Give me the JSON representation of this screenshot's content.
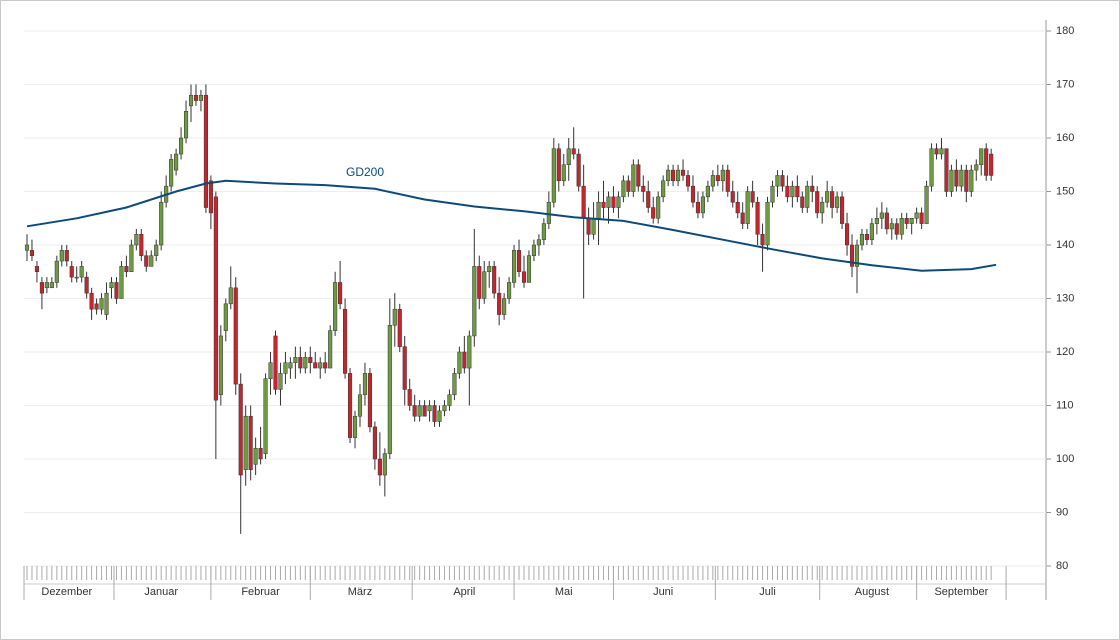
{
  "chart_data": {
    "type": "candlestick",
    "ylim": [
      80,
      180
    ],
    "yticks": [
      80,
      90,
      100,
      110,
      120,
      130,
      140,
      150,
      160,
      170,
      180
    ],
    "grid": true,
    "up_color": "#6f9a44",
    "down_color": "#c3262d",
    "categories": [
      null,
      null,
      null,
      null,
      null,
      null,
      null,
      null,
      "Dezember",
      null,
      null,
      null,
      null,
      null,
      null,
      null,
      null,
      null,
      null,
      null,
      null,
      null,
      null,
      null,
      null,
      null,
      null,
      "Januar",
      null,
      null,
      null,
      null,
      null,
      null,
      null,
      null,
      null,
      null,
      null,
      null,
      null,
      null,
      null,
      null,
      null,
      null,
      null,
      "Februar",
      null,
      null,
      null,
      null,
      null,
      null,
      null,
      null,
      null,
      null,
      null,
      null,
      null,
      null,
      null,
      null,
      null,
      null,
      null,
      "März",
      null,
      null,
      null,
      null,
      null,
      null,
      null,
      null,
      null,
      null,
      null,
      null,
      null,
      null,
      null,
      null,
      null,
      null,
      null,
      null,
      "April",
      null,
      null,
      null,
      null,
      null,
      null,
      null,
      null,
      null,
      null,
      null,
      null,
      null,
      null,
      null,
      null,
      null,
      null,
      null,
      "Mai",
      null,
      null,
      null,
      null,
      null,
      null,
      null,
      null,
      null,
      null,
      null,
      null,
      null,
      null,
      null,
      null,
      null,
      null,
      null,
      "Juni",
      null,
      null,
      null,
      null,
      null,
      null,
      null,
      null,
      null,
      null,
      null,
      null,
      null,
      null,
      null,
      null,
      null,
      null,
      null,
      null,
      "Juli",
      null,
      null,
      null,
      null,
      null,
      null,
      null,
      null,
      null,
      null,
      null,
      null,
      null,
      null,
      null,
      null,
      null,
      null,
      null,
      null,
      "August",
      null,
      null,
      null,
      null,
      null,
      null,
      null,
      null,
      null,
      null,
      null,
      null,
      null,
      null,
      null,
      null,
      null,
      "September",
      null,
      null,
      null,
      null,
      null,
      null
    ],
    "ohlc": [
      [
        139,
        142,
        137,
        140
      ],
      [
        139,
        141,
        137,
        138
      ],
      [
        136,
        137,
        133,
        135
      ],
      [
        133,
        134,
        128,
        131
      ],
      [
        132,
        134,
        131,
        133
      ],
      [
        132,
        134,
        132,
        133
      ],
      [
        133,
        138,
        132,
        137
      ],
      [
        137,
        140,
        136,
        139
      ],
      [
        139,
        140,
        136,
        137
      ],
      [
        136,
        137,
        133,
        134
      ],
      [
        134,
        136,
        133,
        134
      ],
      [
        134,
        137,
        133,
        136
      ],
      [
        134,
        135,
        130,
        131
      ],
      [
        131,
        132,
        126,
        128
      ],
      [
        129,
        130,
        127,
        128
      ],
      [
        128,
        131,
        127,
        130
      ],
      [
        127,
        133,
        126,
        131
      ],
      [
        132,
        134,
        130,
        133
      ],
      [
        133,
        134,
        129,
        130
      ],
      [
        130,
        137,
        130,
        136
      ],
      [
        136,
        138,
        134,
        135
      ],
      [
        135,
        141,
        135,
        140
      ],
      [
        140,
        143,
        139,
        142
      ],
      [
        142,
        143,
        137,
        138
      ],
      [
        138,
        139,
        135,
        136
      ],
      [
        136,
        139,
        136,
        138
      ],
      [
        138,
        141,
        137,
        140
      ],
      [
        140,
        150,
        139,
        148
      ],
      [
        148,
        153,
        147,
        151
      ],
      [
        151,
        157,
        150,
        156
      ],
      [
        154,
        158,
        153,
        157
      ],
      [
        157,
        162,
        156,
        160
      ],
      [
        160,
        167,
        159,
        165
      ],
      [
        166,
        170,
        163,
        168
      ],
      [
        168,
        170,
        166,
        167
      ],
      [
        167,
        169,
        165,
        168
      ],
      [
        168,
        170,
        146,
        147
      ],
      [
        152,
        153,
        143,
        146
      ],
      [
        149,
        150,
        100,
        111
      ],
      [
        112,
        125,
        110,
        123
      ],
      [
        124,
        130,
        122,
        129
      ],
      [
        129,
        136,
        128,
        132
      ],
      [
        132,
        134,
        112,
        114
      ],
      [
        114,
        116,
        86,
        97
      ],
      [
        98,
        110,
        95,
        108
      ],
      [
        108,
        110,
        96,
        98
      ],
      [
        99,
        104,
        97,
        102
      ],
      [
        102,
        106,
        99,
        100
      ],
      [
        101,
        116,
        100,
        115
      ],
      [
        115,
        120,
        112,
        118
      ],
      [
        123,
        124,
        112,
        113
      ],
      [
        113,
        118,
        110,
        116
      ],
      [
        116,
        120,
        114,
        118
      ],
      [
        117,
        119,
        115,
        118
      ],
      [
        118,
        121,
        115,
        119
      ],
      [
        119,
        121,
        116,
        117
      ],
      [
        117,
        120,
        116,
        119
      ],
      [
        119,
        121,
        116,
        118
      ],
      [
        118,
        120,
        117,
        117
      ],
      [
        117,
        119,
        115,
        118
      ],
      [
        118,
        120,
        116,
        117
      ],
      [
        117,
        125,
        117,
        124
      ],
      [
        124,
        135,
        123,
        133
      ],
      [
        133,
        137,
        128,
        129
      ],
      [
        128,
        130,
        115,
        116
      ],
      [
        116,
        117,
        103,
        104
      ],
      [
        104,
        109,
        102,
        108
      ],
      [
        108,
        114,
        106,
        112
      ],
      [
        112,
        118,
        110,
        116
      ],
      [
        116,
        117,
        105,
        106
      ],
      [
        106,
        107,
        98,
        100
      ],
      [
        100,
        105,
        95,
        97
      ],
      [
        97,
        102,
        93,
        101
      ],
      [
        101,
        130,
        100,
        125
      ],
      [
        125,
        131,
        121,
        128
      ],
      [
        128,
        129,
        120,
        121
      ],
      [
        121,
        123,
        110,
        113
      ],
      [
        113,
        115,
        109,
        110
      ],
      [
        110,
        112,
        107,
        108
      ],
      [
        108,
        111,
        107,
        110
      ],
      [
        110,
        111,
        108,
        108
      ],
      [
        109,
        111,
        107,
        110
      ],
      [
        110,
        111,
        106,
        107
      ],
      [
        107,
        110,
        106,
        109
      ],
      [
        109,
        111,
        108,
        110
      ],
      [
        110,
        113,
        109,
        112
      ],
      [
        112,
        117,
        111,
        116
      ],
      [
        116,
        121,
        115,
        120
      ],
      [
        120,
        123,
        116,
        117
      ],
      [
        117,
        124,
        110,
        123
      ],
      [
        123,
        143,
        121,
        136
      ],
      [
        136,
        138,
        128,
        130
      ],
      [
        130,
        137,
        129,
        135
      ],
      [
        135,
        137,
        132,
        136
      ],
      [
        136,
        137,
        130,
        131
      ],
      [
        131,
        134,
        125,
        127
      ],
      [
        127,
        131,
        126,
        130
      ],
      [
        130,
        134,
        129,
        133
      ],
      [
        133,
        140,
        132,
        139
      ],
      [
        139,
        141,
        134,
        135
      ],
      [
        135,
        138,
        132,
        133
      ],
      [
        133,
        139,
        133,
        138
      ],
      [
        138,
        141,
        137,
        140
      ],
      [
        140,
        142,
        138,
        141
      ],
      [
        141,
        145,
        140,
        144
      ],
      [
        144,
        150,
        143,
        148
      ],
      [
        148,
        160,
        147,
        158
      ],
      [
        158,
        159,
        150,
        152
      ],
      [
        152,
        157,
        151,
        155
      ],
      [
        155,
        160,
        152,
        158
      ],
      [
        158,
        162,
        156,
        157
      ],
      [
        157,
        158,
        150,
        151
      ],
      [
        151,
        155,
        130,
        145
      ],
      [
        145,
        147,
        140,
        142
      ],
      [
        142,
        148,
        141,
        145
      ],
      [
        145,
        150,
        140,
        148
      ],
      [
        148,
        152,
        145,
        147
      ],
      [
        147,
        150,
        144,
        149
      ],
      [
        149,
        151,
        146,
        147
      ],
      [
        147,
        150,
        145,
        149
      ],
      [
        149,
        153,
        148,
        152
      ],
      [
        152,
        153,
        149,
        150
      ],
      [
        150,
        156,
        149,
        155
      ],
      [
        155,
        156,
        150,
        151
      ],
      [
        151,
        153,
        148,
        150
      ],
      [
        150,
        152,
        146,
        147
      ],
      [
        147,
        149,
        144,
        145
      ],
      [
        145,
        150,
        144,
        149
      ],
      [
        149,
        153,
        148,
        152
      ],
      [
        152,
        155,
        151,
        154
      ],
      [
        154,
        155,
        151,
        152
      ],
      [
        152,
        155,
        151,
        154
      ],
      [
        154,
        156,
        152,
        153
      ],
      [
        153,
        154,
        150,
        151
      ],
      [
        151,
        153,
        147,
        148
      ],
      [
        148,
        150,
        145,
        146
      ],
      [
        146,
        150,
        145,
        149
      ],
      [
        149,
        152,
        148,
        151
      ],
      [
        151,
        154,
        150,
        153
      ],
      [
        153,
        155,
        151,
        152
      ],
      [
        152,
        155,
        150,
        154
      ],
      [
        154,
        155,
        149,
        150
      ],
      [
        150,
        152,
        147,
        148
      ],
      [
        148,
        150,
        145,
        146
      ],
      [
        146,
        148,
        143,
        144
      ],
      [
        144,
        151,
        143,
        150
      ],
      [
        150,
        152,
        147,
        148
      ],
      [
        148,
        149,
        140,
        142
      ],
      [
        142,
        144,
        135,
        140
      ],
      [
        140,
        149,
        139,
        148
      ],
      [
        148,
        152,
        147,
        151
      ],
      [
        151,
        154,
        149,
        153
      ],
      [
        153,
        154,
        150,
        151
      ],
      [
        151,
        153,
        148,
        149
      ],
      [
        149,
        152,
        147,
        151
      ],
      [
        151,
        153,
        148,
        149
      ],
      [
        149,
        150,
        146,
        147
      ],
      [
        147,
        152,
        146,
        151
      ],
      [
        151,
        153,
        148,
        150
      ],
      [
        150,
        151,
        145,
        146
      ],
      [
        146,
        149,
        144,
        148
      ],
      [
        148,
        152,
        147,
        150
      ],
      [
        150,
        151,
        145,
        147
      ],
      [
        147,
        150,
        146,
        149
      ],
      [
        149,
        150,
        143,
        144
      ],
      [
        144,
        146,
        138,
        140
      ],
      [
        140,
        142,
        134,
        136
      ],
      [
        136,
        141,
        131,
        140
      ],
      [
        140,
        143,
        139,
        142
      ],
      [
        142,
        143,
        140,
        141
      ],
      [
        141,
        145,
        140,
        144
      ],
      [
        144,
        147,
        142,
        145
      ],
      [
        145,
        148,
        143,
        146
      ],
      [
        146,
        147,
        142,
        143
      ],
      [
        143,
        145,
        141,
        144
      ],
      [
        144,
        145,
        141,
        142
      ],
      [
        142,
        146,
        141,
        145
      ],
      [
        145,
        146,
        143,
        144
      ],
      [
        144,
        145,
        142,
        145
      ],
      [
        145,
        147,
        144,
        146
      ],
      [
        146,
        147,
        143,
        144
      ],
      [
        144,
        152,
        144,
        151
      ],
      [
        151,
        159,
        150,
        158
      ],
      [
        158,
        159,
        156,
        157
      ],
      [
        157,
        160,
        156,
        158
      ],
      [
        158,
        158,
        149,
        150
      ],
      [
        150,
        155,
        149,
        154
      ],
      [
        154,
        156,
        150,
        151
      ],
      [
        151,
        155,
        150,
        154
      ],
      [
        154,
        155,
        148,
        150
      ],
      [
        150,
        155,
        149,
        154
      ],
      [
        154,
        156,
        152,
        155
      ],
      [
        155,
        158,
        153,
        158
      ],
      [
        158,
        159,
        152,
        153
      ],
      [
        157,
        158,
        152,
        153
      ]
    ],
    "line": {
      "name": "GD200",
      "color": "#0d4a7a",
      "x": [
        0,
        10,
        20,
        30,
        36,
        40,
        50,
        60,
        70,
        80,
        90,
        100,
        110,
        120,
        130,
        140,
        150,
        160,
        170,
        180,
        190,
        195
      ],
      "values": [
        143.5,
        145,
        147,
        150,
        151.5,
        152,
        151.5,
        151.2,
        150.5,
        148.5,
        147.2,
        146.3,
        145.2,
        144.5,
        142.8,
        141,
        139.2,
        137.5,
        136.2,
        135.2,
        135.5,
        136.3
      ]
    }
  }
}
